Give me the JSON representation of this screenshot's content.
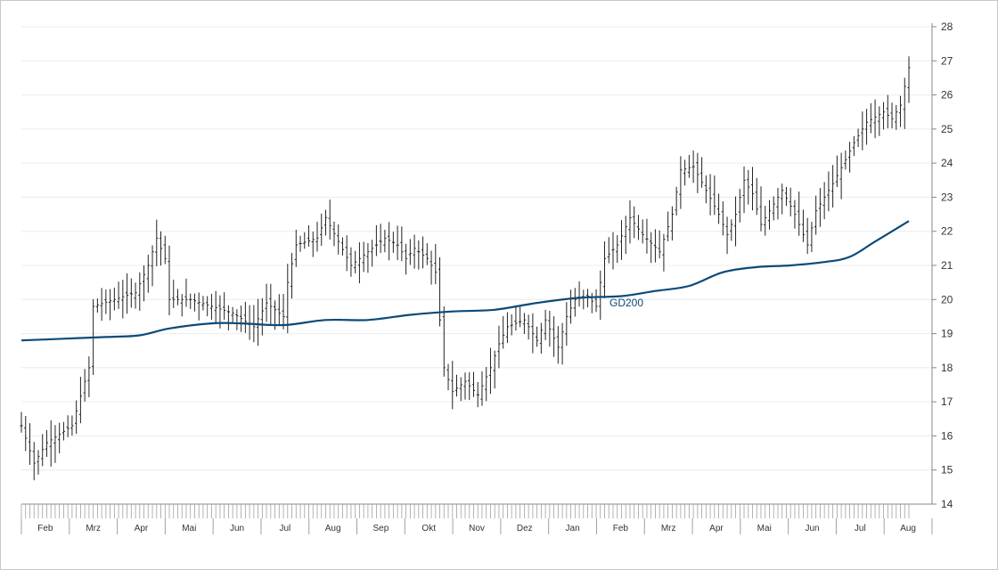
{
  "chart_data": {
    "type": "ohlc",
    "ylim": [
      14,
      28
    ],
    "y_ticks": [
      14,
      15,
      16,
      17,
      18,
      19,
      20,
      21,
      22,
      23,
      24,
      25,
      26,
      27,
      28
    ],
    "y_axis_side": "right",
    "grid": "horizontal",
    "x_tick_labels": [
      "Feb",
      "Mrz",
      "Apr",
      "Mai",
      "Jun",
      "Jul",
      "Aug",
      "Sep",
      "Okt",
      "Nov",
      "Dez",
      "Jan",
      "Feb",
      "Mrz",
      "Apr",
      "Mai",
      "Jun",
      "Jul",
      "Aug"
    ],
    "price_path": [
      [
        0,
        16.3
      ],
      [
        3,
        15.2
      ],
      [
        6,
        15.8
      ],
      [
        12,
        16.3
      ],
      [
        15,
        17.6
      ],
      [
        16,
        18.0
      ],
      [
        17,
        19.8
      ],
      [
        22,
        20.0
      ],
      [
        27,
        20.2
      ],
      [
        30,
        21.0
      ],
      [
        32,
        21.8
      ],
      [
        34,
        21.2
      ],
      [
        35,
        20.0
      ],
      [
        40,
        20.0
      ],
      [
        45,
        19.8
      ],
      [
        50,
        19.6
      ],
      [
        55,
        19.2
      ],
      [
        58,
        19.9
      ],
      [
        62,
        19.5
      ],
      [
        63,
        20.5
      ],
      [
        65,
        21.6
      ],
      [
        70,
        21.8
      ],
      [
        72,
        22.4
      ],
      [
        75,
        21.7
      ],
      [
        78,
        21.0
      ],
      [
        82,
        21.4
      ],
      [
        86,
        21.8
      ],
      [
        89,
        21.6
      ],
      [
        91,
        21.2
      ],
      [
        93,
        21.5
      ],
      [
        96,
        21.2
      ],
      [
        98,
        20.8
      ],
      [
        100,
        18.0
      ],
      [
        102,
        17.3
      ],
      [
        105,
        17.6
      ],
      [
        108,
        17.2
      ],
      [
        111,
        18.0
      ],
      [
        113,
        18.7
      ],
      [
        115,
        19.2
      ],
      [
        119,
        19.4
      ],
      [
        122,
        18.8
      ],
      [
        124,
        19.4
      ],
      [
        127,
        18.6
      ],
      [
        129,
        19.5
      ],
      [
        131,
        20.0
      ],
      [
        134,
        20.1
      ],
      [
        136,
        19.8
      ],
      [
        138,
        21.2
      ],
      [
        141,
        21.6
      ],
      [
        144,
        22.4
      ],
      [
        147,
        21.9
      ],
      [
        151,
        21.4
      ],
      [
        154,
        22.5
      ],
      [
        156,
        23.8
      ],
      [
        159,
        23.9
      ],
      [
        162,
        23.2
      ],
      [
        165,
        22.5
      ],
      [
        167,
        21.9
      ],
      [
        169,
        22.5
      ],
      [
        171,
        23.5
      ],
      [
        173,
        23.1
      ],
      [
        175,
        22.2
      ],
      [
        177,
        22.6
      ],
      [
        180,
        23.2
      ],
      [
        183,
        22.5
      ],
      [
        186,
        21.6
      ],
      [
        188,
        22.6
      ],
      [
        190,
        23.0
      ],
      [
        192,
        23.4
      ],
      [
        195,
        24.1
      ],
      [
        197,
        24.6
      ],
      [
        200,
        25.2
      ],
      [
        204,
        25.5
      ],
      [
        206,
        25.3
      ],
      [
        208,
        25.7
      ],
      [
        210,
        26.8
      ]
    ],
    "series": [
      {
        "name": "GD200",
        "x": [
          0,
          10,
          20,
          28,
          35,
          45,
          52,
          62,
          72,
          82,
          92,
          102,
          112,
          122,
          132,
          142,
          150,
          158,
          166,
          174,
          182,
          190,
          196,
          202,
          210
        ],
        "values": [
          18.8,
          18.85,
          18.9,
          18.95,
          19.15,
          19.3,
          19.3,
          19.25,
          19.4,
          19.4,
          19.55,
          19.65,
          19.7,
          19.9,
          20.05,
          20.1,
          20.25,
          20.4,
          20.8,
          20.95,
          21.0,
          21.1,
          21.25,
          21.7,
          22.3
        ]
      }
    ],
    "annotations": [
      {
        "text": "GD200"
      }
    ]
  },
  "colors": {
    "bars": "#222222",
    "moving_average": "#0b4a78",
    "grid": "#ececec",
    "axis": "#888888",
    "tick_text": "#333333"
  }
}
